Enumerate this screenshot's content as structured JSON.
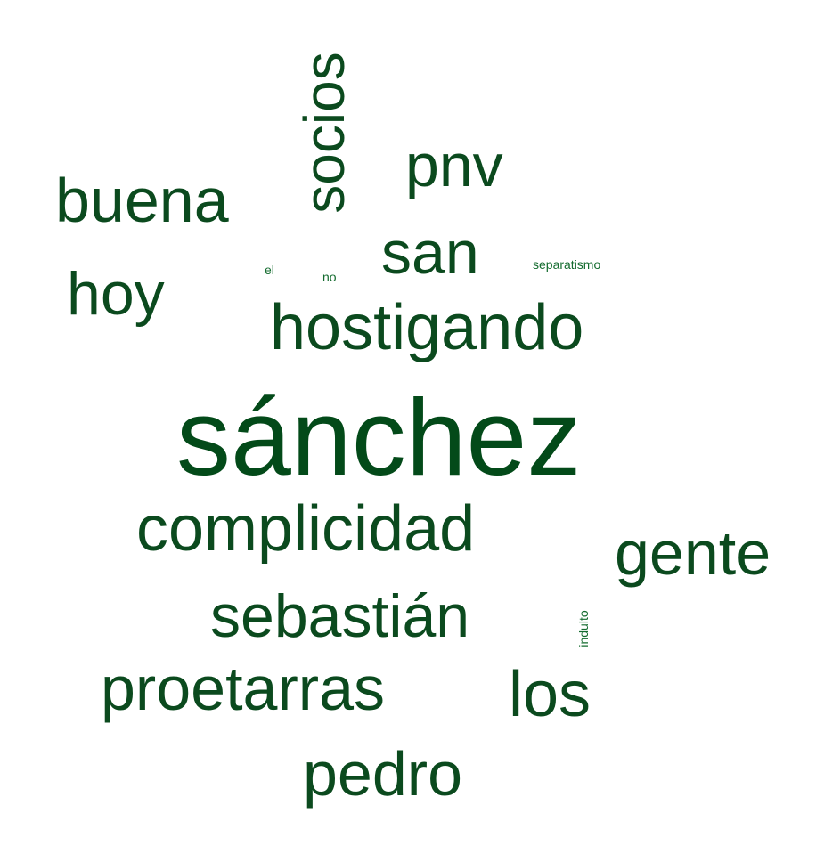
{
  "palette": {
    "dark_green": "#034a19",
    "mid_green": "#0b4a1e",
    "light_green": "#136b2e"
  },
  "words": {
    "sanchez": "sánchez",
    "hostigando": "hostigando",
    "complicidad": "complicidad",
    "sebastian": "sebastián",
    "proetarras": "proetarras",
    "socios": "socios",
    "buena": "buena",
    "pnv": "pnv",
    "san": "san",
    "hoy": "hoy",
    "gente": "gente",
    "los": "los",
    "pedro": "pedro",
    "el": "el",
    "no": "no",
    "separatismo": "separatismo",
    "indulto": "indulto"
  }
}
